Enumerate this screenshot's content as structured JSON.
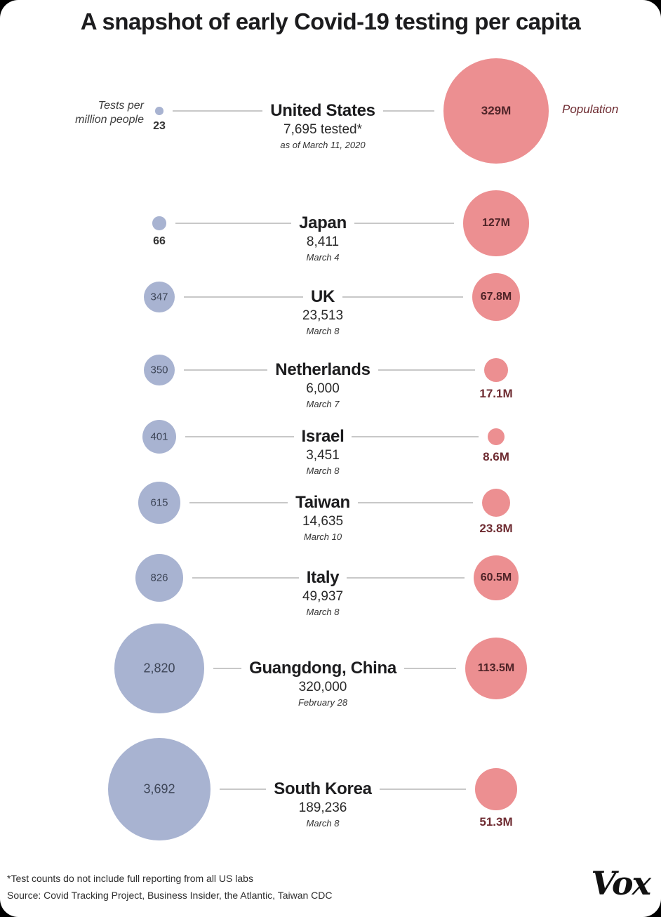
{
  "title": "A snapshot of early Covid-19 testing per capita",
  "legend": {
    "tests_line1": "Tests per",
    "tests_line2": "million people",
    "population": "Population"
  },
  "colors": {
    "tests_bubble": "#a8b3d1",
    "tests_label_inside": "#3e4658",
    "population_bubble": "#ec8f91",
    "population_label_inside": "#4f2428",
    "population_label_outside": "#6e2b31",
    "connector_line": "#c8c8c8",
    "text": "#1c1c1e"
  },
  "chart_data": {
    "type": "scatter",
    "subtype": "paired-bubble-comparison",
    "title": "A snapshot of early Covid-19 testing per capita",
    "categories": [
      "United States",
      "Japan",
      "UK",
      "Netherlands",
      "Israel",
      "Taiwan",
      "Italy",
      "Guangdong, China",
      "South Korea"
    ],
    "series": [
      {
        "name": "Tests per million people",
        "values": [
          23,
          66,
          347,
          350,
          401,
          615,
          826,
          2820,
          3692
        ]
      },
      {
        "name": "Population (millions)",
        "values": [
          329,
          127,
          67.8,
          17.1,
          8.6,
          23.8,
          60.5,
          113.5,
          51.3
        ]
      }
    ],
    "legend_position": "top",
    "grid": false,
    "rows": [
      {
        "country": "United States",
        "tests_per_million": 23,
        "tests_label": "23",
        "tested": "7,695 tested*",
        "date": "as of March 11, 2020",
        "population_m": 329,
        "population_label": "329M"
      },
      {
        "country": "Japan",
        "tests_per_million": 66,
        "tests_label": "66",
        "tested": "8,411",
        "date": "March 4",
        "population_m": 127,
        "population_label": "127M"
      },
      {
        "country": "UK",
        "tests_per_million": 347,
        "tests_label": "347",
        "tested": "23,513",
        "date": "March 8",
        "population_m": 67.8,
        "population_label": "67.8M"
      },
      {
        "country": "Netherlands",
        "tests_per_million": 350,
        "tests_label": "350",
        "tested": "6,000",
        "date": "March 7",
        "population_m": 17.1,
        "population_label": "17.1M"
      },
      {
        "country": "Israel",
        "tests_per_million": 401,
        "tests_label": "401",
        "tested": "3,451",
        "date": "March 8",
        "population_m": 8.6,
        "population_label": "8.6M"
      },
      {
        "country": "Taiwan",
        "tests_per_million": 615,
        "tests_label": "615",
        "tested": "14,635",
        "date": "March 10",
        "population_m": 23.8,
        "population_label": "23.8M"
      },
      {
        "country": "Italy",
        "tests_per_million": 826,
        "tests_label": "826",
        "tested": "49,937",
        "date": "March 8",
        "population_m": 60.5,
        "population_label": "60.5M"
      },
      {
        "country": "Guangdong, China",
        "tests_per_million": 2820,
        "tests_label": "2,820",
        "tested": "320,000",
        "date": "February 28",
        "population_m": 113.5,
        "population_label": "113.5M"
      },
      {
        "country": "South Korea",
        "tests_per_million": 3692,
        "tests_label": "3,692",
        "tested": "189,236",
        "date": "March 8",
        "population_m": 51.3,
        "population_label": "51.3M"
      }
    ]
  },
  "footer": {
    "note": "*Test counts do not include full reporting from all US labs",
    "source": "Source: Covid Tracking Project, Business Insider, the Atlantic, Taiwan CDC"
  },
  "brand": {
    "logo_text": "Vox"
  }
}
